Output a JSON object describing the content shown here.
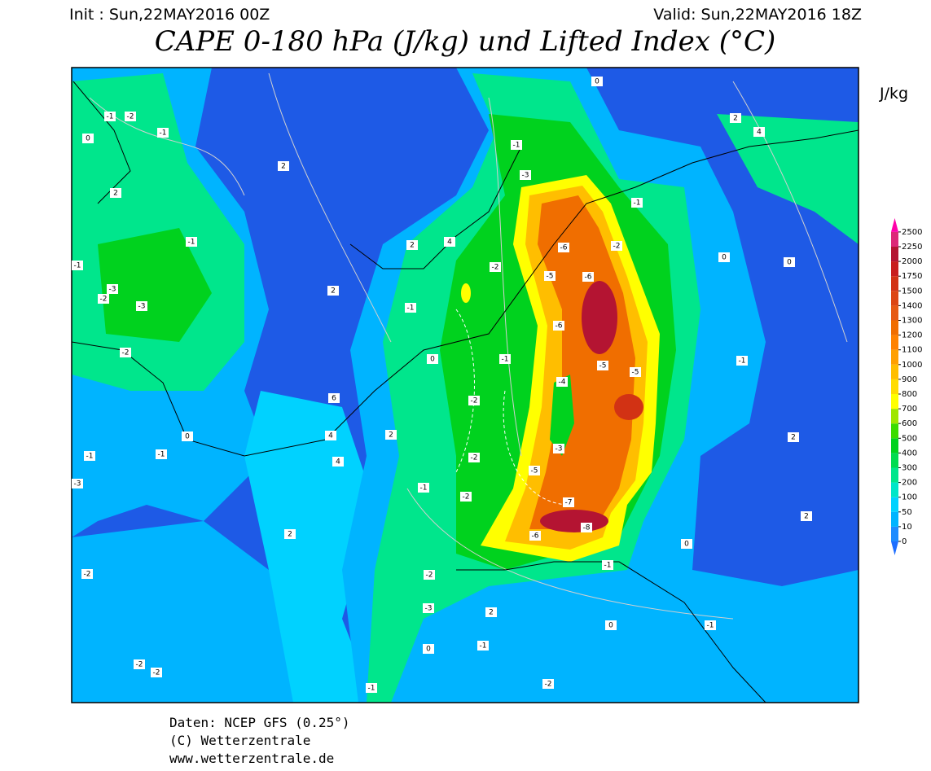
{
  "header": {
    "init": "Init : Sun,22MAY2016 00Z",
    "valid": "Valid: Sun,22MAY2016 18Z",
    "title": "CAPE 0-180 hPa (J/kg) und Lifted Index (°C)"
  },
  "legend": {
    "unit": "J/kg",
    "ticks": [
      0,
      10,
      50,
      100,
      200,
      300,
      400,
      500,
      600,
      700,
      800,
      900,
      1000,
      1100,
      1200,
      1300,
      1400,
      1500,
      1750,
      2000,
      2250,
      2500
    ],
    "colors": [
      "#1e6eff",
      "#1e8cff",
      "#00b4ff",
      "#00d2ff",
      "#00e6c8",
      "#00e68c",
      "#00dc50",
      "#00d21e",
      "#3cdc00",
      "#a0e600",
      "#ffff00",
      "#ffdc00",
      "#ffbe00",
      "#ffa000",
      "#ff8200",
      "#f06e00",
      "#e65a14",
      "#dc4614",
      "#d23214",
      "#c81e1e",
      "#b41432",
      "#dc2878",
      "#ff00aa"
    ]
  },
  "contour_labels": [
    "-1",
    "-2",
    "-1",
    "0",
    "2",
    "2",
    "-1",
    "-1",
    "-3",
    "-2",
    "-3",
    "-2",
    "2",
    "-1",
    "2",
    "4",
    "-2",
    "-5",
    "-6",
    "-6",
    "-2",
    "-6",
    "-1",
    "-5",
    "-5",
    "-4",
    "-2",
    "0",
    "-3",
    "-5",
    "-2",
    "-1",
    "-2",
    "-7",
    "-8",
    "-6",
    "-1",
    "0",
    "0",
    "-1",
    "2",
    "2",
    "4",
    "2",
    "0",
    "-1",
    "-3",
    "-1",
    "0",
    "-1",
    "-1",
    "-3",
    "-2",
    "-2",
    "-2",
    "2",
    "4",
    "6",
    "4",
    "2",
    "-2",
    "-3",
    "0",
    "-1",
    "2",
    "0",
    "-1",
    "-2",
    "-1",
    "0"
  ],
  "footer": [
    "Daten: NCEP GFS (0.25°)",
    "(C) Wetterzentrale",
    "www.wetterzentrale.de"
  ]
}
